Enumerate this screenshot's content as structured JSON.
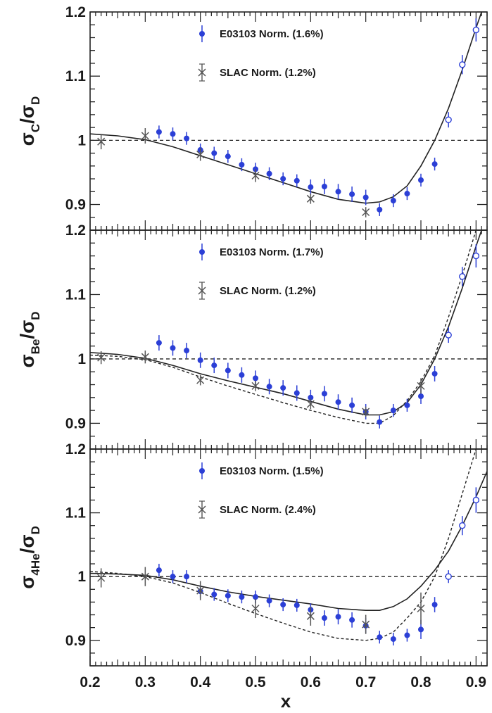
{
  "chart_data": {
    "type": "scatter",
    "xlabel": "x",
    "xlim": [
      0.2,
      0.92
    ],
    "x_ticks": [
      0.2,
      0.3,
      0.4,
      0.5,
      0.6,
      0.7,
      0.8,
      0.9
    ],
    "x_tick_labels": [
      "0.2",
      "0.3",
      "0.4",
      "0.5",
      "0.6",
      "0.7",
      "0.8",
      "0.9"
    ],
    "colors": {
      "e03103": "#2b3fd6",
      "slac": "#555555",
      "curve": "#222222"
    },
    "panels": [
      {
        "ylabel": {
          "main": "σ",
          "sub1": "C",
          "slash": "/σ",
          "sub2": "D"
        },
        "ylim": [
          0.86,
          1.2
        ],
        "y_ticks": [
          0.9,
          1.0,
          1.1,
          1.2
        ],
        "y_tick_labels": [
          "0.9",
          "1",
          "1.1",
          "1.2"
        ],
        "legend": [
          {
            "label": "E03103 Norm. (1.6%)",
            "marker": "filled-circle"
          },
          {
            "label": "SLAC Norm. (1.2%)",
            "marker": "cross"
          }
        ],
        "series": [
          {
            "marker": "filled-circle",
            "x": [
              0.325,
              0.35,
              0.375,
              0.4,
              0.425,
              0.45,
              0.475,
              0.5,
              0.525,
              0.55,
              0.575,
              0.6,
              0.625,
              0.65,
              0.675,
              0.7,
              0.725,
              0.75,
              0.775,
              0.8,
              0.825
            ],
            "y": [
              1.013,
              1.01,
              1.003,
              0.985,
              0.98,
              0.975,
              0.962,
              0.955,
              0.948,
              0.94,
              0.937,
              0.927,
              0.928,
              0.92,
              0.916,
              0.911,
              0.892,
              0.906,
              0.917,
              0.938,
              0.963
            ],
            "err": [
              0.01,
              0.01,
              0.01,
              0.01,
              0.01,
              0.01,
              0.01,
              0.01,
              0.01,
              0.01,
              0.01,
              0.012,
              0.012,
              0.012,
              0.012,
              0.012,
              0.01,
              0.01,
              0.01,
              0.01,
              0.01
            ]
          },
          {
            "marker": "open-circle",
            "x": [
              0.85,
              0.875,
              0.9
            ],
            "y": [
              1.032,
              1.118,
              1.172
            ],
            "err": [
              0.012,
              0.015,
              0.018
            ]
          },
          {
            "marker": "cross",
            "x": [
              0.22,
              0.3,
              0.4,
              0.5,
              0.6,
              0.7
            ],
            "y": [
              0.998,
              1.007,
              0.978,
              0.945,
              0.909,
              0.888
            ],
            "err": [
              0.012,
              0.012,
              0.01,
              0.01,
              0.008,
              0.008
            ]
          }
        ],
        "curves": [
          {
            "style": "solid",
            "x": [
              0.2,
              0.25,
              0.3,
              0.35,
              0.4,
              0.45,
              0.5,
              0.55,
              0.6,
              0.65,
              0.7,
              0.725,
              0.75,
              0.775,
              0.8,
              0.825,
              0.85,
              0.875,
              0.9,
              0.91
            ],
            "y": [
              1.01,
              1.007,
              1.001,
              0.99,
              0.976,
              0.962,
              0.948,
              0.934,
              0.92,
              0.908,
              0.902,
              0.904,
              0.912,
              0.929,
              0.96,
              1.0,
              1.05,
              1.11,
              1.175,
              1.2
            ]
          }
        ]
      },
      {
        "ylabel": {
          "main": "σ",
          "sub1": "Be",
          "slash": "/σ",
          "sub2": "D"
        },
        "ylim": [
          0.86,
          1.2
        ],
        "y_ticks": [
          0.9,
          1.0,
          1.1,
          1.2
        ],
        "y_tick_labels": [
          "0.9",
          "1",
          "1.1",
          "1.2"
        ],
        "legend": [
          {
            "label": "E03103 Norm. (1.7%)",
            "marker": "filled-circle"
          },
          {
            "label": "SLAC Norm. (1.2%)",
            "marker": "cross"
          }
        ],
        "series": [
          {
            "marker": "filled-circle",
            "x": [
              0.325,
              0.35,
              0.375,
              0.4,
              0.425,
              0.45,
              0.475,
              0.5,
              0.525,
              0.55,
              0.575,
              0.6,
              0.625,
              0.65,
              0.675,
              0.7,
              0.725,
              0.75,
              0.775,
              0.8,
              0.825
            ],
            "y": [
              1.025,
              1.017,
              1.013,
              0.998,
              0.99,
              0.982,
              0.975,
              0.97,
              0.957,
              0.955,
              0.947,
              0.94,
              0.946,
              0.933,
              0.928,
              0.918,
              0.902,
              0.92,
              0.928,
              0.942,
              0.977
            ],
            "err": [
              0.012,
              0.012,
              0.012,
              0.012,
              0.012,
              0.012,
              0.012,
              0.012,
              0.012,
              0.012,
              0.012,
              0.012,
              0.012,
              0.012,
              0.012,
              0.012,
              0.01,
              0.01,
              0.01,
              0.012,
              0.012
            ]
          },
          {
            "marker": "open-circle",
            "x": [
              0.85,
              0.875,
              0.9
            ],
            "y": [
              1.037,
              1.128,
              1.16
            ],
            "err": [
              0.012,
              0.015,
              0.018
            ]
          },
          {
            "marker": "cross",
            "x": [
              0.22,
              0.3,
              0.4,
              0.5,
              0.6,
              0.7,
              0.8
            ],
            "y": [
              1.002,
              1.003,
              0.967,
              0.958,
              0.93,
              0.918,
              0.958
            ],
            "err": [
              0.01,
              0.01,
              0.008,
              0.008,
              0.008,
              0.008,
              0.012
            ]
          }
        ],
        "curves": [
          {
            "style": "solid",
            "x": [
              0.2,
              0.25,
              0.3,
              0.35,
              0.4,
              0.45,
              0.5,
              0.55,
              0.6,
              0.65,
              0.7,
              0.725,
              0.75,
              0.775,
              0.8,
              0.825,
              0.85,
              0.875,
              0.9,
              0.91
            ],
            "y": [
              1.01,
              1.007,
              1.001,
              0.99,
              0.977,
              0.966,
              0.956,
              0.946,
              0.934,
              0.922,
              0.913,
              0.913,
              0.918,
              0.932,
              0.96,
              1.0,
              1.05,
              1.11,
              1.175,
              1.2
            ]
          },
          {
            "style": "dashed",
            "x": [
              0.2,
              0.25,
              0.3,
              0.35,
              0.4,
              0.45,
              0.5,
              0.55,
              0.6,
              0.65,
              0.7,
              0.725,
              0.75,
              0.775,
              0.8,
              0.825,
              0.85,
              0.875,
              0.9
            ],
            "y": [
              1.006,
              1.004,
              0.999,
              0.987,
              0.972,
              0.958,
              0.945,
              0.932,
              0.92,
              0.909,
              0.9,
              0.9,
              0.912,
              0.935,
              0.965,
              1.005,
              1.065,
              1.13,
              1.2
            ]
          }
        ]
      },
      {
        "ylabel": {
          "main": "σ",
          "sub1": "4He",
          "slash": "/σ",
          "sub2": "D"
        },
        "ylim": [
          0.86,
          1.2
        ],
        "y_ticks": [
          0.9,
          1.0,
          1.1,
          1.2
        ],
        "y_tick_labels": [
          "0.9",
          "1",
          "1.1",
          "1.2"
        ],
        "legend": [
          {
            "label": "E03103 Norm. (1.5%)",
            "marker": "filled-circle"
          },
          {
            "label": "SLAC Norm. (2.4%)",
            "marker": "cross"
          }
        ],
        "series": [
          {
            "marker": "filled-circle",
            "x": [
              0.325,
              0.35,
              0.375,
              0.4,
              0.425,
              0.45,
              0.475,
              0.5,
              0.525,
              0.55,
              0.575,
              0.6,
              0.625,
              0.65,
              0.675,
              0.7,
              0.725,
              0.75,
              0.775,
              0.8,
              0.825
            ],
            "y": [
              1.01,
              1.0,
              1.0,
              0.977,
              0.972,
              0.97,
              0.968,
              0.968,
              0.962,
              0.956,
              0.955,
              0.948,
              0.935,
              0.937,
              0.932,
              0.923,
              0.905,
              0.902,
              0.908,
              0.917,
              0.956
            ],
            "err": [
              0.01,
              0.01,
              0.01,
              0.01,
              0.01,
              0.01,
              0.01,
              0.01,
              0.01,
              0.01,
              0.01,
              0.01,
              0.012,
              0.012,
              0.012,
              0.012,
              0.01,
              0.01,
              0.01,
              0.015,
              0.012
            ]
          },
          {
            "marker": "open-circle",
            "x": [
              0.85,
              0.875,
              0.9
            ],
            "y": [
              1.0,
              1.08,
              1.12
            ],
            "err": [
              0.01,
              0.015,
              0.02
            ]
          },
          {
            "marker": "cross",
            "x": [
              0.22,
              0.3,
              0.4,
              0.5,
              0.6,
              0.7,
              0.8
            ],
            "y": [
              0.998,
              1.0,
              0.978,
              0.95,
              0.938,
              0.925,
              0.95
            ],
            "err": [
              0.015,
              0.015,
              0.015,
              0.015,
              0.015,
              0.015,
              0.025
            ]
          }
        ],
        "curves": [
          {
            "style": "solid",
            "x": [
              0.2,
              0.25,
              0.3,
              0.35,
              0.4,
              0.45,
              0.5,
              0.55,
              0.6,
              0.65,
              0.7,
              0.725,
              0.75,
              0.775,
              0.8,
              0.825,
              0.85,
              0.875,
              0.9,
              0.925
            ],
            "y": [
              1.005,
              1.004,
              1.002,
              0.995,
              0.985,
              0.976,
              0.969,
              0.963,
              0.957,
              0.95,
              0.947,
              0.947,
              0.953,
              0.965,
              0.985,
              1.01,
              1.04,
              1.08,
              1.125,
              1.175
            ]
          },
          {
            "style": "dashed",
            "x": [
              0.2,
              0.25,
              0.3,
              0.35,
              0.4,
              0.45,
              0.5,
              0.55,
              0.6,
              0.65,
              0.7,
              0.725,
              0.75,
              0.775,
              0.8,
              0.825,
              0.85,
              0.875,
              0.9
            ],
            "y": [
              1.008,
              1.005,
              1.0,
              0.99,
              0.975,
              0.958,
              0.942,
              0.927,
              0.913,
              0.903,
              0.9,
              0.903,
              0.913,
              0.935,
              0.96,
              1.0,
              1.06,
              1.13,
              1.2
            ]
          }
        ]
      }
    ]
  }
}
